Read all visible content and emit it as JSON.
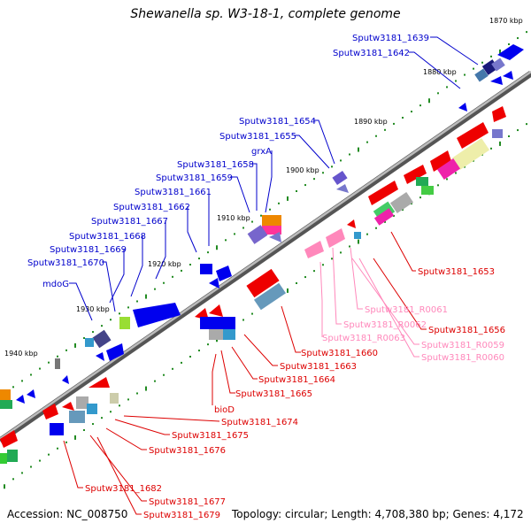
{
  "title": "Shewanella sp. W3-18-1, complete genome",
  "footer": {
    "accession": "Accession: NC_008750",
    "info": "Topology: circular; Length: 4,708,380 bp; Genes: 4,172"
  },
  "colors": {
    "backbone": "#888888",
    "tick": "#228b22",
    "forward_label": "#0000cc",
    "reverse_label": "#dd0000",
    "rna_label": "#ff88bb"
  },
  "kbp_ticks": [
    "1870 kbp",
    "1880 kbp",
    "1890 kbp",
    "1900 kbp",
    "1910 kbp",
    "1920 kbp",
    "1930 kbp",
    "1940 kbp"
  ],
  "forward_labels": [
    "Sputw3181_1639",
    "Sputw3181_1642",
    "Sputw3181_1654",
    "Sputw3181_1655",
    "grxA",
    "Sputw3181_1658",
    "Sputw3181_1659",
    "Sputw3181_1661",
    "Sputw3181_1662",
    "Sputw3181_1667",
    "Sputw3181_1668",
    "Sputw3181_1669",
    "Sputw3181_1670",
    "mdoG"
  ],
  "reverse_labels": [
    "Sputw3181_1653",
    "Sputw3181_1656",
    "Sputw3181_1660",
    "Sputw3181_1663",
    "Sputw3181_1664",
    "Sputw3181_1665",
    "bioD",
    "Sputw3181_1674",
    "Sputw3181_1675",
    "Sputw3181_1676",
    "Sputw3181_1682",
    "Sputw3181_1677",
    "Sputw3181_1679"
  ],
  "rna_labels": [
    "Sputw3181_R0061",
    "Sputw3181_R0062",
    "Sputw3181_R0063",
    "Sputw3181_R0059",
    "Sputw3181_R0060"
  ]
}
